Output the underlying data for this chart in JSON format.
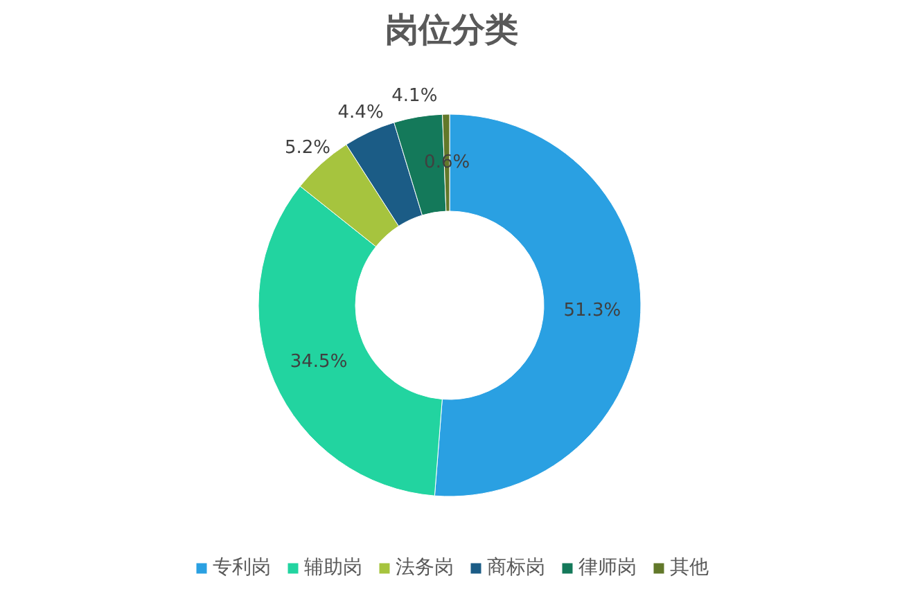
{
  "chart_data": {
    "type": "donut",
    "title": "岗位分类",
    "categories": [
      "专利岗",
      "辅助岗",
      "法务岗",
      "商标岗",
      "律师岗",
      "其他"
    ],
    "values": [
      51.3,
      34.5,
      5.2,
      4.4,
      4.1,
      0.6
    ],
    "colors": [
      "#2aa0e2",
      "#22d4a0",
      "#a6c43e",
      "#1b5c86",
      "#14795a",
      "#62782a"
    ],
    "value_labels": [
      "51.3%",
      "34.5%",
      "5.2%",
      "4.4%",
      "4.1%",
      "0.6%"
    ],
    "legend": "bottom"
  }
}
